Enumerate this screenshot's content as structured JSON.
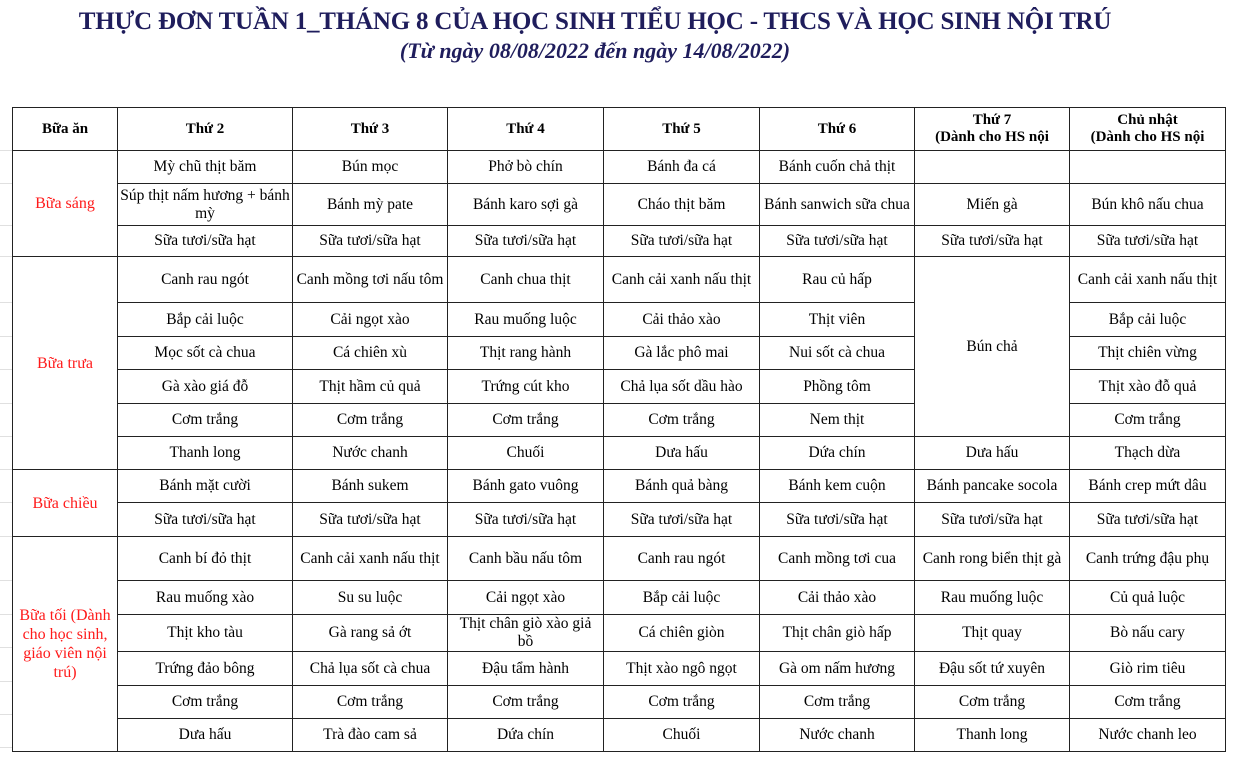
{
  "title": "THỰC ĐƠN TUẦN 1_THÁNG 8 CỦA HỌC SINH TIỂU HỌC  - THCS VÀ HỌC SINH NỘI TRÚ",
  "subtitle": "(Từ ngày 08/08/2022 đến ngày 14/08/2022)",
  "colors": {
    "title": "#1f1d5c",
    "meal_label": "#ff1a1a",
    "border": "#222222"
  },
  "header": [
    [
      "Bữa ăn"
    ],
    [
      "Thứ 2"
    ],
    [
      "Thứ 3"
    ],
    [
      "Thứ 4"
    ],
    [
      "Thứ 5"
    ],
    [
      "Thứ 6"
    ],
    [
      "Thứ 7",
      "(Dành cho HS nội"
    ],
    [
      "Chủ nhật",
      "(Dành cho HS nội"
    ]
  ],
  "meals": [
    {
      "label": "Bữa sáng",
      "rows": [
        [
          "Mỳ chũ thịt băm",
          "Bún mọc",
          "Phở bò chín",
          "Bánh đa cá",
          "Bánh cuốn chả thịt",
          "",
          ""
        ],
        [
          "Súp thịt nấm hương + bánh mỳ",
          "Bánh mỳ pate",
          "Bánh karo sợi gà",
          "Cháo thịt băm",
          "Bánh sanwich sữa chua",
          "Miến gà",
          "Bún khô nấu chua"
        ],
        [
          "Sữa tươi/sữa hạt",
          "Sữa tươi/sữa hạt",
          "Sữa tươi/sữa hạt",
          "Sữa tươi/sữa hạt",
          "Sữa tươi/sữa hạt",
          "Sữa tươi/sữa hạt",
          "Sữa tươi/sữa hạt"
        ]
      ]
    },
    {
      "label": "Bữa trưa",
      "rows": [
        [
          "Canh rau ngót",
          "Canh mồng tơi nấu tôm",
          "Canh chua thịt",
          "Canh cải xanh nấu thịt",
          "Rau củ hấp",
          {
            "text": "Bún chả",
            "rowspan": 5
          },
          "Canh cải xanh nấu thịt"
        ],
        [
          "Bắp cải luộc",
          "Cải ngọt xào",
          "Rau muống luộc",
          "Cải thảo xào",
          "Thịt viên",
          null,
          "Bắp cải luộc"
        ],
        [
          "Mọc sốt cà chua",
          "Cá chiên xù",
          "Thịt rang hành",
          "Gà lắc phô mai",
          "Nui sốt cà chua",
          null,
          "Thịt chiên vừng"
        ],
        [
          "Gà xào giá đỗ",
          "Thịt hầm củ quả",
          "Trứng cút kho",
          "Chả lụa sốt dầu hào",
          "Phồng tôm",
          null,
          "Thịt xào đỗ quả"
        ],
        [
          "Cơm trắng",
          "Cơm trắng",
          "Cơm trắng",
          "Cơm trắng",
          "Nem thịt",
          null,
          "Cơm trắng"
        ],
        [
          "Thanh long",
          "Nước chanh",
          "Chuối",
          "Dưa hấu",
          "Dứa chín",
          "Dưa hấu",
          "Thạch dừa"
        ]
      ]
    },
    {
      "label": "Bữa chiều",
      "rows": [
        [
          "Bánh mặt cười",
          "Bánh sukem",
          "Bánh gato vuông",
          "Bánh quả bàng",
          "Bánh kem cuộn",
          "Bánh pancake socola",
          "Bánh crep mứt dâu"
        ],
        [
          "Sữa tươi/sữa hạt",
          "Sữa tươi/sữa hạt",
          "Sữa tươi/sữa hạt",
          "Sữa tươi/sữa hạt",
          "Sữa tươi/sữa hạt",
          "Sữa tươi/sữa hạt",
          "Sữa tươi/sữa hạt"
        ]
      ]
    },
    {
      "label": "Bữa tối (Dành cho học sinh, giáo viên nội trú)",
      "rows": [
        [
          "Canh bí đỏ thịt",
          "Canh cải xanh nấu thịt",
          "Canh bầu nấu tôm",
          "Canh rau ngót",
          "Canh mồng tơi cua",
          "Canh rong biển thịt gà",
          "Canh trứng đậu phụ"
        ],
        [
          "Rau muống xào",
          "Su su luộc",
          "Cải ngọt xào",
          "Bắp cải luộc",
          "Cải thảo xào",
          "Rau muống luộc",
          "Củ quả luộc"
        ],
        [
          "Thịt kho tàu",
          "Gà rang sả ớt",
          "Thịt chân giò xào giả bồ",
          "Cá chiên giòn",
          "Thịt chân giò hấp",
          "Thịt quay",
          "Bò nấu cary"
        ],
        [
          "Trứng đảo bông",
          "Chả lụa sốt cà chua",
          "Đậu tẩm hành",
          "Thịt xào ngô ngọt",
          "Gà om nấm hương",
          "Đậu sốt tứ xuyên",
          "Giò rim tiêu"
        ],
        [
          "Cơm trắng",
          "Cơm trắng",
          "Cơm trắng",
          "Cơm trắng",
          "Cơm trắng",
          "Cơm trắng",
          "Cơm trắng"
        ],
        [
          "Dưa hấu",
          "Trà đào cam sả",
          "Dứa chín",
          "Chuối",
          "Nước chanh",
          "Thanh long",
          "Nước chanh leo"
        ]
      ]
    }
  ]
}
